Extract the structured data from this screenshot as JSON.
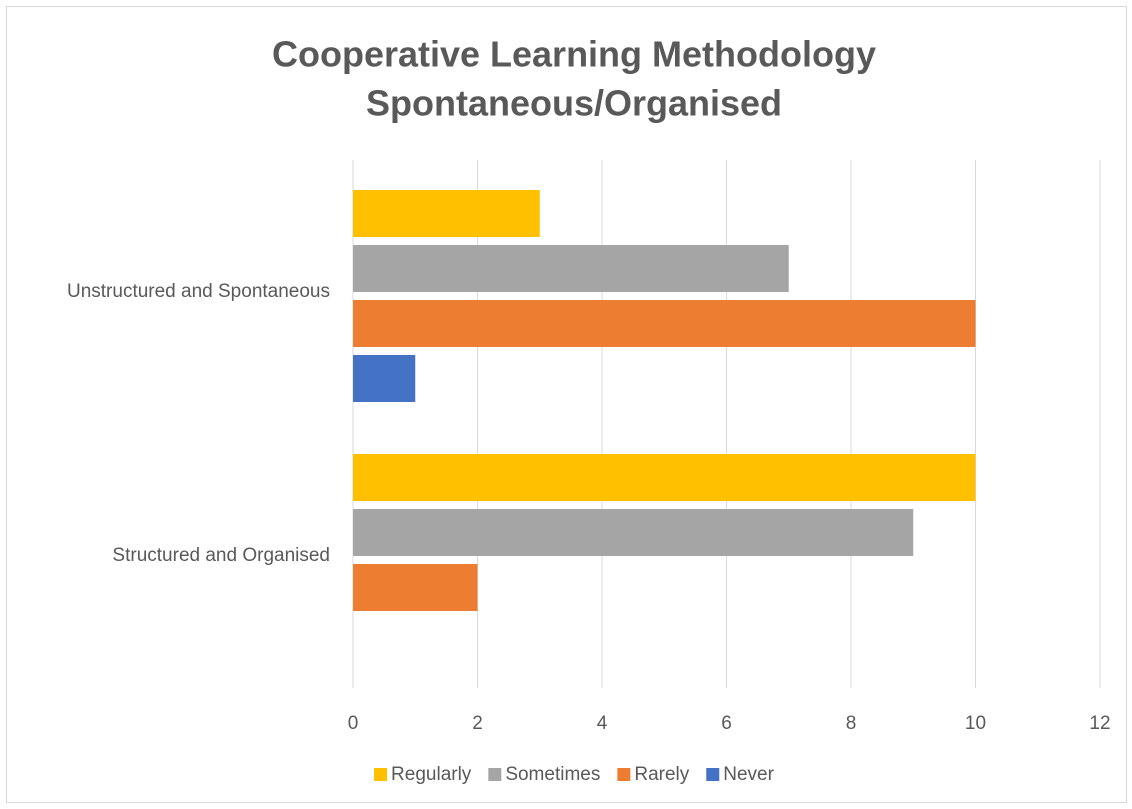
{
  "chart_data": {
    "type": "bar",
    "orientation": "horizontal",
    "title": [
      "Cooperative Learning Methodology",
      "Spontaneous/Organised"
    ],
    "categories": [
      "Unstructured and Spontaneous",
      "Structured and Organised"
    ],
    "series": [
      {
        "name": "Regularly",
        "color": "#ffc000",
        "values": [
          3,
          10
        ]
      },
      {
        "name": "Sometimes",
        "color": "#a5a5a5",
        "values": [
          7,
          9
        ]
      },
      {
        "name": "Rarely",
        "color": "#ed7d31",
        "values": [
          10,
          2
        ]
      },
      {
        "name": "Never",
        "color": "#4472c4",
        "values": [
          1,
          0
        ]
      }
    ],
    "xlim": [
      0,
      12
    ],
    "xticks": [
      0,
      2,
      4,
      6,
      8,
      10,
      12
    ],
    "grid": true,
    "legend": "bottom"
  }
}
